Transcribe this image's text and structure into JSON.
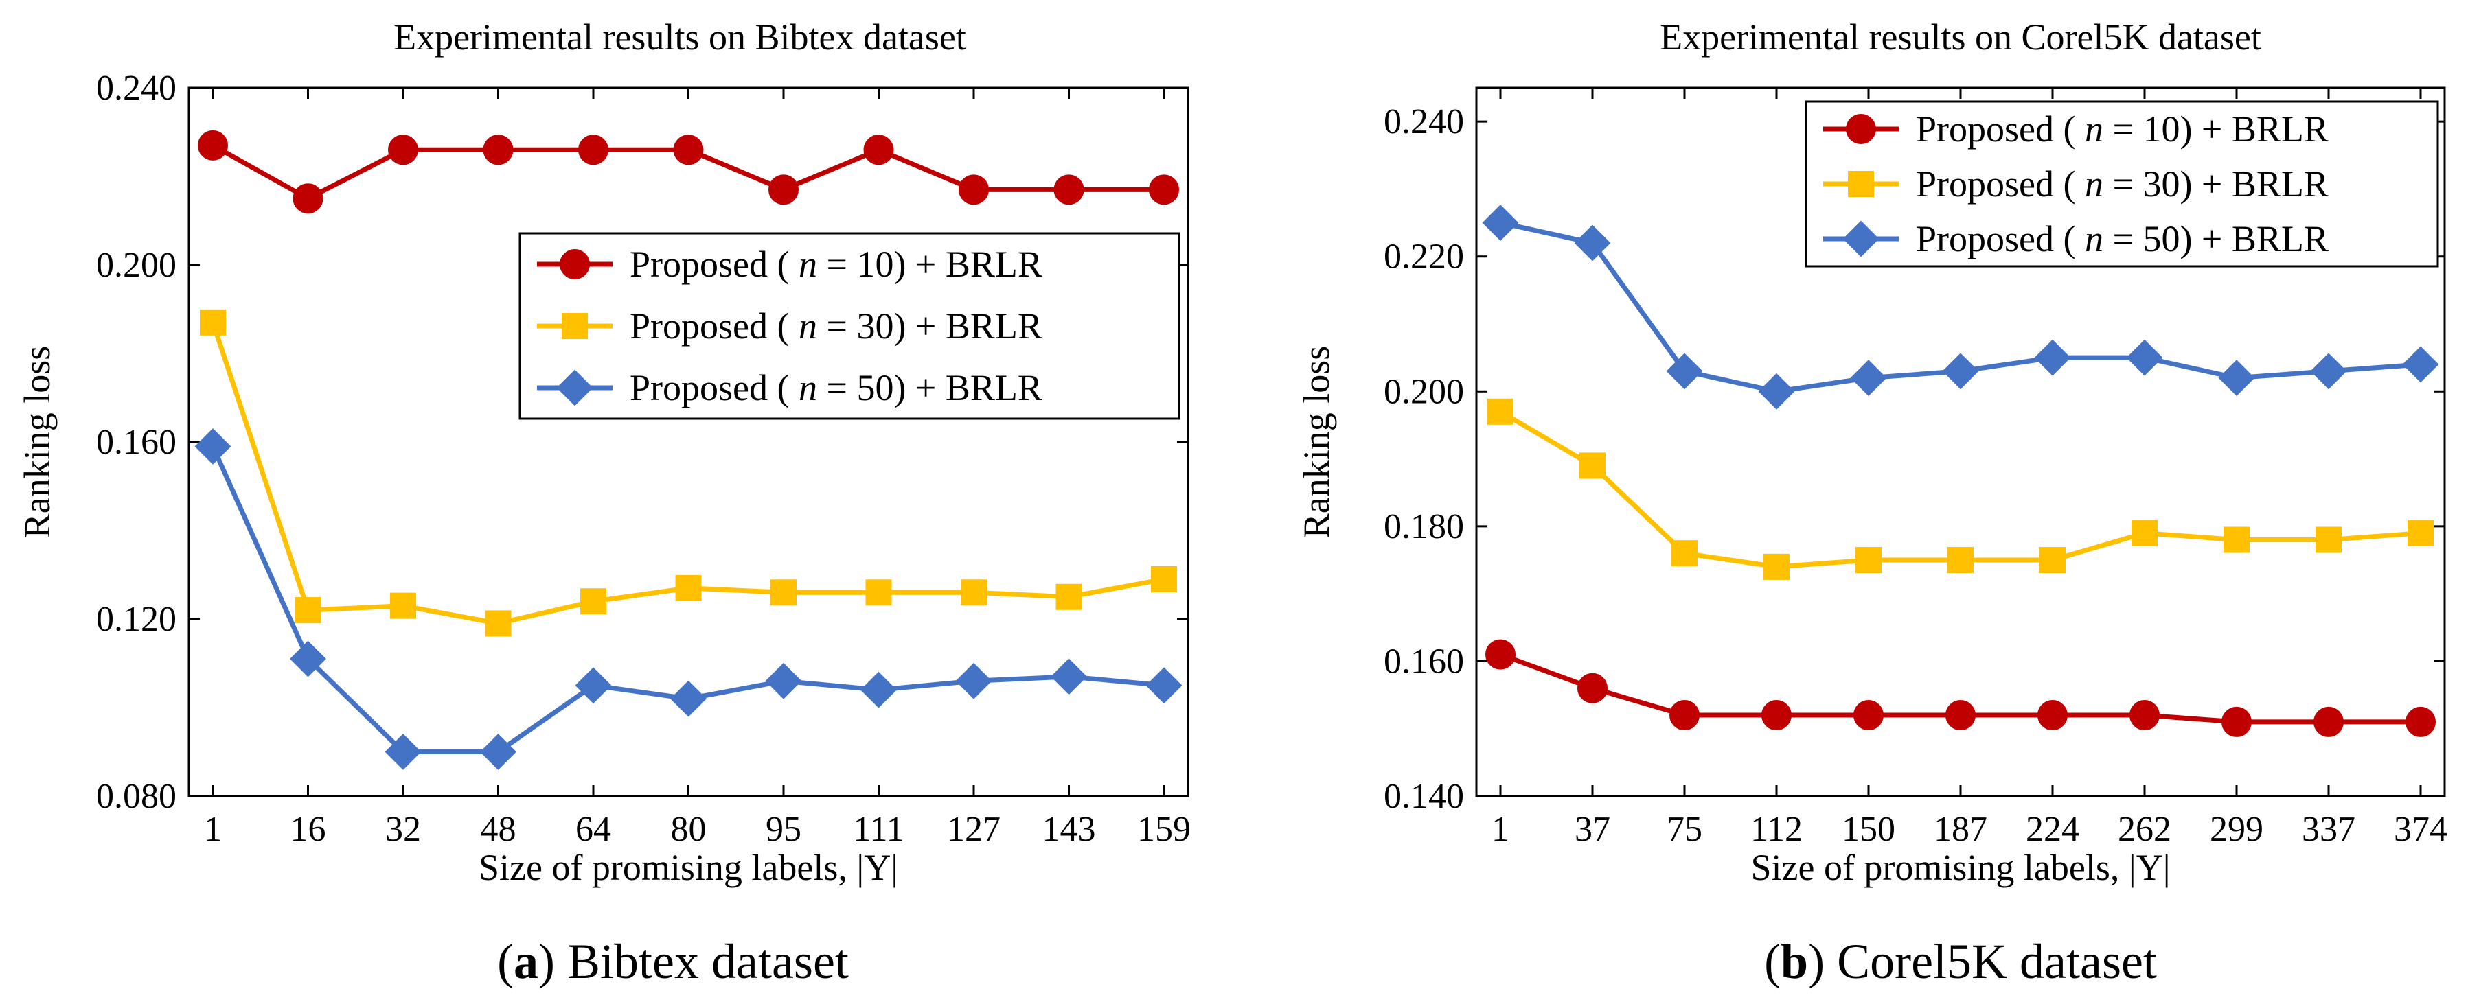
{
  "chart_data": [
    {
      "type": "line",
      "title": "Experimental results on Bibtex dataset",
      "xlabel": "Size of promising labels, |Y|",
      "ylabel": "Ranking loss",
      "categories": [
        "1",
        "16",
        "32",
        "48",
        "64",
        "80",
        "95",
        "111",
        "127",
        "143",
        "159"
      ],
      "ylim": [
        0.08,
        0.24
      ],
      "yticks": [
        "0.080",
        "0.120",
        "0.160",
        "0.200",
        "0.240"
      ],
      "legend_position": "top-right",
      "caption_label": "(a)",
      "caption_letter": "a",
      "caption_text": "Bibtex dataset",
      "series": [
        {
          "name": "Proposed ( n = 10) + BRLR",
          "color": "#c00000",
          "marker": "circle",
          "values": [
            0.227,
            0.215,
            0.226,
            0.226,
            0.226,
            0.226,
            0.217,
            0.226,
            0.217,
            0.217,
            0.217
          ]
        },
        {
          "name": "Proposed ( n = 30) + BRLR",
          "color": "#ffc000",
          "marker": "square",
          "values": [
            0.187,
            0.122,
            0.123,
            0.119,
            0.124,
            0.127,
            0.126,
            0.126,
            0.126,
            0.125,
            0.129
          ]
        },
        {
          "name": "Proposed ( n = 50) + BRLR",
          "color": "#4472c4",
          "marker": "diamond",
          "values": [
            0.159,
            0.111,
            0.09,
            0.09,
            0.105,
            0.102,
            0.106,
            0.104,
            0.106,
            0.107,
            0.105
          ]
        }
      ]
    },
    {
      "type": "line",
      "title": "Experimental results on Corel5K dataset",
      "xlabel": "Size of promising labels, |Y|",
      "ylabel": "Ranking loss",
      "categories": [
        "1",
        "37",
        "75",
        "112",
        "150",
        "187",
        "224",
        "262",
        "299",
        "337",
        "374"
      ],
      "ylim": [
        0.14,
        0.245
      ],
      "yticks": [
        "0.140",
        "0.160",
        "0.180",
        "0.200",
        "0.220",
        "0.240"
      ],
      "legend_position": "top-right",
      "caption_label": "(b)",
      "caption_letter": "b",
      "caption_text": "Corel5K dataset",
      "series": [
        {
          "name": "Proposed ( n = 10) + BRLR",
          "color": "#c00000",
          "marker": "circle",
          "values": [
            0.161,
            0.156,
            0.152,
            0.152,
            0.152,
            0.152,
            0.152,
            0.152,
            0.151,
            0.151,
            0.151
          ]
        },
        {
          "name": "Proposed ( n = 30) + BRLR",
          "color": "#ffc000",
          "marker": "square",
          "values": [
            0.197,
            0.189,
            0.176,
            0.174,
            0.175,
            0.175,
            0.175,
            0.179,
            0.178,
            0.178,
            0.179
          ]
        },
        {
          "name": "Proposed ( n = 50) + BRLR",
          "color": "#4472c4",
          "marker": "diamond",
          "values": [
            0.225,
            0.222,
            0.203,
            0.2,
            0.202,
            0.203,
            0.205,
            0.205,
            0.202,
            0.203,
            0.204
          ]
        }
      ]
    }
  ]
}
